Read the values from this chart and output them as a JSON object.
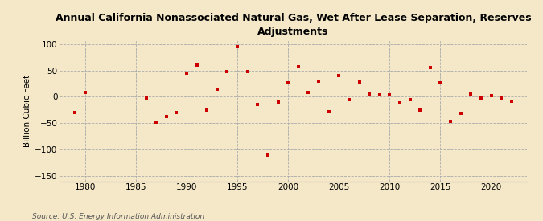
{
  "title": "Annual California Nonassociated Natural Gas, Wet After Lease Separation, Reserves\nAdjustments",
  "ylabel": "Billion Cubic Feet",
  "source": "Source: U.S. Energy Information Administration",
  "background_color": "#f5e8c8",
  "plot_bg_color": "#f5e8c8",
  "marker_color": "#cc0000",
  "xlim": [
    1977.5,
    2023.5
  ],
  "ylim": [
    -160,
    108
  ],
  "yticks": [
    -150,
    -100,
    -50,
    0,
    50,
    100
  ],
  "xticks": [
    1980,
    1985,
    1990,
    1995,
    2000,
    2005,
    2010,
    2015,
    2020
  ],
  "years": [
    1979,
    1980,
    1986,
    1987,
    1988,
    1989,
    1990,
    1991,
    1992,
    1993,
    1994,
    1995,
    1996,
    1997,
    1998,
    1999,
    2000,
    2001,
    2002,
    2003,
    2004,
    2005,
    2006,
    2007,
    2008,
    2009,
    2010,
    2011,
    2012,
    2013,
    2014,
    2015,
    2016,
    2017,
    2018,
    2019,
    2020,
    2021,
    2022
  ],
  "values": [
    -30,
    8,
    -3,
    -48,
    -37,
    -30,
    45,
    60,
    -25,
    15,
    48,
    95,
    48,
    -15,
    -110,
    -10,
    26,
    57,
    8,
    30,
    -28,
    40,
    -5,
    28,
    5,
    4,
    4,
    -12,
    -5,
    -25,
    56,
    27,
    -47,
    -32,
    5,
    -2,
    2,
    -3,
    -8
  ]
}
